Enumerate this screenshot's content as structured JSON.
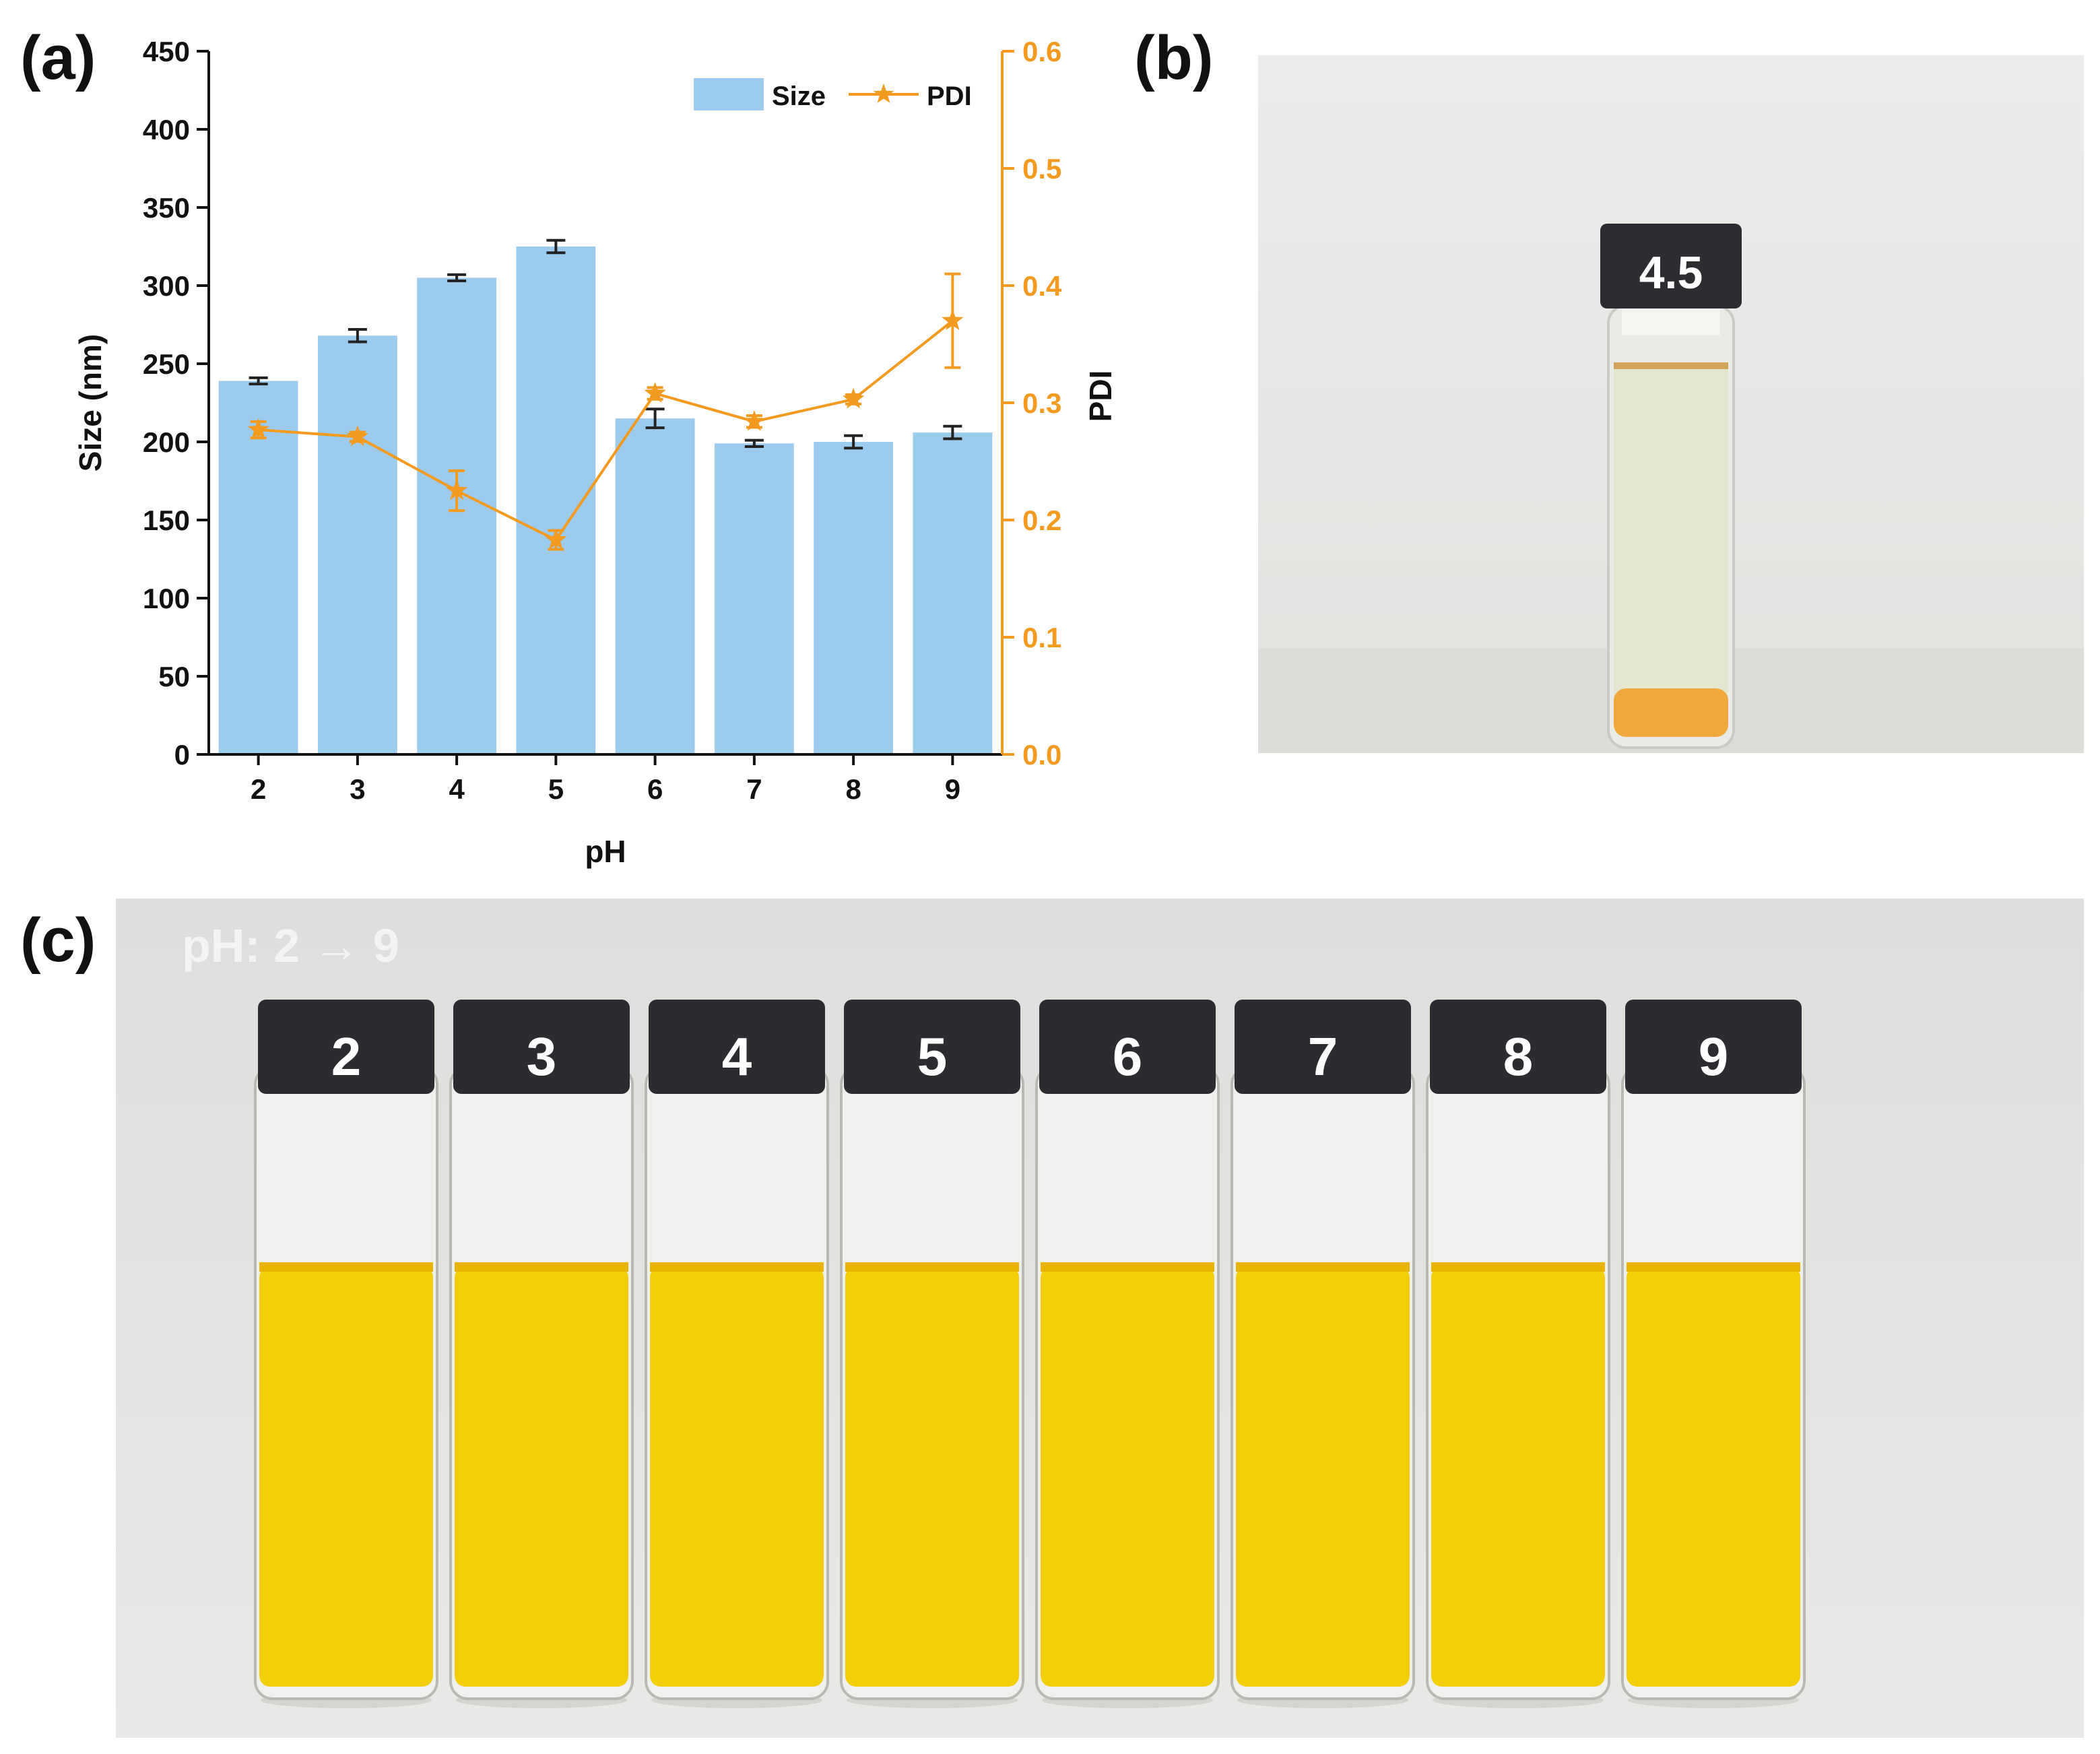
{
  "panels": {
    "a": "(a)",
    "b": "(b)",
    "c": "(c)"
  },
  "chart_data": {
    "type": "bar",
    "xlabel": "pH",
    "ylabel": "Size (nm)",
    "y2label": "PDI",
    "categories": [
      "2",
      "3",
      "4",
      "5",
      "6",
      "7",
      "8",
      "9"
    ],
    "ylim": [
      0,
      450
    ],
    "y2lim": [
      0,
      0.6
    ],
    "yticks": [
      "0",
      "50",
      "100",
      "150",
      "200",
      "250",
      "300",
      "350",
      "400",
      "450"
    ],
    "y2ticks": [
      "0.0",
      "0.1",
      "0.2",
      "0.3",
      "0.4",
      "0.5",
      "0.6"
    ],
    "legend_position": "top-right",
    "series": [
      {
        "name": "Size",
        "kind": "bar",
        "axis": "left",
        "values": [
          239,
          268,
          305,
          325,
          215,
          199,
          200,
          206
        ],
        "errors": [
          2,
          4,
          2,
          4,
          6,
          2,
          4,
          4
        ]
      },
      {
        "name": "PDI",
        "kind": "line",
        "axis": "right",
        "values": [
          0.277,
          0.271,
          0.225,
          0.183,
          0.308,
          0.284,
          0.303,
          0.37
        ],
        "errors": [
          0.007,
          0.004,
          0.017,
          0.008,
          0.005,
          0.005,
          0.004,
          0.04
        ]
      }
    ],
    "colors": {
      "bar": "#9ccbee",
      "line": "#f39a1f",
      "axis": "#111111",
      "right_axis": "#f39a1f",
      "error": "#222222"
    }
  },
  "photo_b": {
    "vial_labels": [
      "4.5"
    ],
    "colors": {
      "cap": "#2b2d30",
      "liquid": "#e4e6cf",
      "sediment": "#f0a83c"
    }
  },
  "photo_c": {
    "caption": "pH: 2 → 9",
    "vial_labels": [
      "2",
      "3",
      "4",
      "5",
      "6",
      "7",
      "8",
      "9"
    ],
    "colors": {
      "cap": "#2a2c2f",
      "liquid": "#f2cf08",
      "meniscus": "#e9b400"
    }
  }
}
